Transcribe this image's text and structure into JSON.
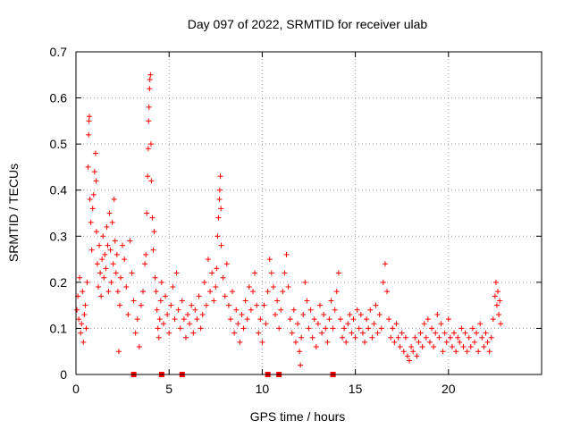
{
  "chart_data": {
    "type": "scatter",
    "title": "Day 097 of 2022, SRMTID for receiver ulab",
    "xlabel": "GPS time / hours",
    "ylabel": "SRMTID / TECUs",
    "xlim": [
      0,
      25
    ],
    "ylim": [
      0,
      0.7
    ],
    "x_ticks": [
      0,
      5,
      10,
      15,
      20
    ],
    "x_tick_labels": [
      "0",
      "5",
      "10",
      "15",
      "20"
    ],
    "y_ticks": [
      0,
      0.1,
      0.2,
      0.3,
      0.4,
      0.5,
      0.6,
      0.7
    ],
    "y_tick_labels": [
      "0",
      "0.1",
      "0.2",
      "0.3",
      "0.4",
      "0.5",
      "0.6",
      "0.7"
    ],
    "grid": true,
    "marker": "plus",
    "color": "#ff0000",
    "series": [
      {
        "name": "SRMTID",
        "points": [
          [
            0.05,
            0.14
          ],
          [
            0.1,
            0.17
          ],
          [
            0.15,
            0.12
          ],
          [
            0.2,
            0.21
          ],
          [
            0.25,
            0.09
          ],
          [
            0.3,
            0.11
          ],
          [
            0.35,
            0.18
          ],
          [
            0.4,
            0.07
          ],
          [
            0.45,
            0.13
          ],
          [
            0.5,
            0.15
          ],
          [
            0.55,
            0.1
          ],
          [
            0.6,
            0.2
          ],
          [
            0.65,
            0.45
          ],
          [
            0.68,
            0.52
          ],
          [
            0.7,
            0.55
          ],
          [
            0.72,
            0.56
          ],
          [
            0.75,
            0.38
          ],
          [
            0.8,
            0.33
          ],
          [
            0.85,
            0.27
          ],
          [
            0.9,
            0.36
          ],
          [
            0.95,
            0.39
          ],
          [
            1.0,
            0.44
          ],
          [
            1.05,
            0.48
          ],
          [
            1.08,
            0.42
          ],
          [
            1.1,
            0.31
          ],
          [
            1.15,
            0.24
          ],
          [
            1.2,
            0.19
          ],
          [
            1.25,
            0.28
          ],
          [
            1.3,
            0.22
          ],
          [
            1.35,
            0.17
          ],
          [
            1.4,
            0.25
          ],
          [
            1.45,
            0.3
          ],
          [
            1.5,
            0.21
          ],
          [
            1.55,
            0.26
          ],
          [
            1.6,
            0.23
          ],
          [
            1.65,
            0.32
          ],
          [
            1.7,
            0.28
          ],
          [
            1.75,
            0.18
          ],
          [
            1.8,
            0.35
          ],
          [
            1.85,
            0.27
          ],
          [
            1.9,
            0.2
          ],
          [
            1.95,
            0.33
          ],
          [
            2.0,
            0.24
          ],
          [
            2.05,
            0.38
          ],
          [
            2.1,
            0.29
          ],
          [
            2.15,
            0.22
          ],
          [
            2.2,
            0.26
          ],
          [
            2.25,
            0.18
          ],
          [
            2.3,
            0.05
          ],
          [
            2.35,
            0.15
          ],
          [
            2.4,
            0.21
          ],
          [
            2.5,
            0.28
          ],
          [
            2.6,
            0.25
          ],
          [
            2.7,
            0.19
          ],
          [
            2.8,
            0.13
          ],
          [
            2.9,
            0.29
          ],
          [
            3.0,
            0.22
          ],
          [
            3.1,
            0.16
          ],
          [
            3.2,
            0.09
          ],
          [
            3.3,
            0.12
          ],
          [
            3.4,
            0.06
          ],
          [
            3.5,
            0.15
          ],
          [
            3.6,
            0.18
          ],
          [
            3.7,
            0.24
          ],
          [
            3.75,
            0.26
          ],
          [
            3.8,
            0.35
          ],
          [
            3.85,
            0.43
          ],
          [
            3.88,
            0.49
          ],
          [
            3.9,
            0.55
          ],
          [
            3.92,
            0.58
          ],
          [
            3.95,
            0.62
          ],
          [
            3.97,
            0.64
          ],
          [
            4.0,
            0.65
          ],
          [
            4.03,
            0.5
          ],
          [
            4.05,
            0.42
          ],
          [
            4.1,
            0.34
          ],
          [
            4.15,
            0.27
          ],
          [
            4.2,
            0.31
          ],
          [
            4.25,
            0.21
          ],
          [
            4.3,
            0.18
          ],
          [
            4.35,
            0.14
          ],
          [
            4.4,
            0.1
          ],
          [
            4.45,
            0.08
          ],
          [
            4.5,
            0.12
          ],
          [
            4.55,
            0.16
          ],
          [
            4.6,
            0.2
          ],
          [
            4.7,
            0.11
          ],
          [
            4.8,
            0.17
          ],
          [
            4.9,
            0.13
          ],
          [
            5.0,
            0.09
          ],
          [
            5.1,
            0.15
          ],
          [
            5.2,
            0.19
          ],
          [
            5.3,
            0.12
          ],
          [
            5.4,
            0.22
          ],
          [
            5.5,
            0.14
          ],
          [
            5.6,
            0.1
          ],
          [
            5.7,
            0.16
          ],
          [
            5.8,
            0.12
          ],
          [
            5.9,
            0.08
          ],
          [
            6.0,
            0.13
          ],
          [
            6.1,
            0.11
          ],
          [
            6.2,
            0.15
          ],
          [
            6.3,
            0.09
          ],
          [
            6.4,
            0.14
          ],
          [
            6.5,
            0.12
          ],
          [
            6.6,
            0.17
          ],
          [
            6.7,
            0.1
          ],
          [
            6.8,
            0.13
          ],
          [
            6.9,
            0.2
          ],
          [
            7.0,
            0.15
          ],
          [
            7.1,
            0.25
          ],
          [
            7.2,
            0.18
          ],
          [
            7.3,
            0.22
          ],
          [
            7.4,
            0.16
          ],
          [
            7.5,
            0.19
          ],
          [
            7.55,
            0.23
          ],
          [
            7.6,
            0.3
          ],
          [
            7.65,
            0.34
          ],
          [
            7.7,
            0.38
          ],
          [
            7.72,
            0.4
          ],
          [
            7.75,
            0.43
          ],
          [
            7.78,
            0.36
          ],
          [
            7.8,
            0.28
          ],
          [
            7.9,
            0.21
          ],
          [
            8.0,
            0.17
          ],
          [
            8.1,
            0.24
          ],
          [
            8.2,
            0.15
          ],
          [
            8.3,
            0.12
          ],
          [
            8.4,
            0.18
          ],
          [
            8.5,
            0.09
          ],
          [
            8.6,
            0.14
          ],
          [
            8.7,
            0.11
          ],
          [
            8.8,
            0.07
          ],
          [
            8.9,
            0.13
          ],
          [
            9.0,
            0.1
          ],
          [
            9.1,
            0.16
          ],
          [
            9.2,
            0.12
          ],
          [
            9.3,
            0.19
          ],
          [
            9.4,
            0.14
          ],
          [
            9.5,
            0.18
          ],
          [
            9.6,
            0.22
          ],
          [
            9.7,
            0.15
          ],
          [
            9.8,
            0.09
          ],
          [
            9.9,
            0.12
          ],
          [
            10.0,
            0.07
          ],
          [
            10.1,
            0.15
          ],
          [
            10.2,
            0.11
          ],
          [
            10.3,
            0.18
          ],
          [
            10.4,
            0.25
          ],
          [
            10.5,
            0.22
          ],
          [
            10.6,
            0.19
          ],
          [
            10.7,
            0.13
          ],
          [
            10.8,
            0.16
          ],
          [
            10.9,
            0.1
          ],
          [
            11.0,
            0.14
          ],
          [
            11.1,
            0.18
          ],
          [
            11.2,
            0.22
          ],
          [
            11.3,
            0.26
          ],
          [
            11.4,
            0.19
          ],
          [
            11.5,
            0.12
          ],
          [
            11.6,
            0.09
          ],
          [
            11.7,
            0.14
          ],
          [
            11.8,
            0.07
          ],
          [
            11.9,
            0.11
          ],
          [
            12.0,
            0.05
          ],
          [
            12.05,
            0.02
          ],
          [
            12.1,
            0.08
          ],
          [
            12.2,
            0.13
          ],
          [
            12.3,
            0.2
          ],
          [
            12.4,
            0.16
          ],
          [
            12.5,
            0.1
          ],
          [
            12.6,
            0.14
          ],
          [
            12.7,
            0.08
          ],
          [
            12.8,
            0.12
          ],
          [
            12.9,
            0.06
          ],
          [
            13.0,
            0.11
          ],
          [
            13.1,
            0.15
          ],
          [
            13.2,
            0.09
          ],
          [
            13.3,
            0.13
          ],
          [
            13.4,
            0.1
          ],
          [
            13.5,
            0.07
          ],
          [
            13.6,
            0.12
          ],
          [
            13.7,
            0.16
          ],
          [
            13.8,
            0.1
          ],
          [
            13.9,
            0.14
          ],
          [
            14.0,
            0.18
          ],
          [
            14.1,
            0.22
          ],
          [
            14.2,
            0.12
          ],
          [
            14.3,
            0.08
          ],
          [
            14.4,
            0.1
          ],
          [
            14.5,
            0.07
          ],
          [
            14.6,
            0.11
          ],
          [
            14.7,
            0.13
          ],
          [
            14.8,
            0.09
          ],
          [
            14.9,
            0.12
          ],
          [
            15.0,
            0.08
          ],
          [
            15.1,
            0.14
          ],
          [
            15.2,
            0.1
          ],
          [
            15.3,
            0.13
          ],
          [
            15.4,
            0.09
          ],
          [
            15.5,
            0.07
          ],
          [
            15.6,
            0.12
          ],
          [
            15.7,
            0.1
          ],
          [
            15.8,
            0.14
          ],
          [
            15.9,
            0.08
          ],
          [
            16.0,
            0.11
          ],
          [
            16.1,
            0.15
          ],
          [
            16.2,
            0.09
          ],
          [
            16.3,
            0.13
          ],
          [
            16.4,
            0.1
          ],
          [
            16.5,
            0.2
          ],
          [
            16.6,
            0.24
          ],
          [
            16.7,
            0.18
          ],
          [
            16.8,
            0.12
          ],
          [
            16.9,
            0.08
          ],
          [
            17.0,
            0.1
          ],
          [
            17.1,
            0.07
          ],
          [
            17.2,
            0.11
          ],
          [
            17.3,
            0.08
          ],
          [
            17.4,
            0.06
          ],
          [
            17.5,
            0.09
          ],
          [
            17.6,
            0.05
          ],
          [
            17.7,
            0.08
          ],
          [
            17.8,
            0.04
          ],
          [
            17.9,
            0.03
          ],
          [
            18.0,
            0.06
          ],
          [
            18.1,
            0.05
          ],
          [
            18.2,
            0.08
          ],
          [
            18.3,
            0.04
          ],
          [
            18.4,
            0.07
          ],
          [
            18.5,
            0.09
          ],
          [
            18.6,
            0.06
          ],
          [
            18.7,
            0.11
          ],
          [
            18.8,
            0.08
          ],
          [
            18.9,
            0.12
          ],
          [
            19.0,
            0.07
          ],
          [
            19.1,
            0.1
          ],
          [
            19.2,
            0.06
          ],
          [
            19.3,
            0.09
          ],
          [
            19.4,
            0.13
          ],
          [
            19.5,
            0.08
          ],
          [
            19.6,
            0.11
          ],
          [
            19.7,
            0.05
          ],
          [
            19.8,
            0.09
          ],
          [
            19.9,
            0.07
          ],
          [
            20.0,
            0.12
          ],
          [
            20.1,
            0.08
          ],
          [
            20.2,
            0.06
          ],
          [
            20.3,
            0.09
          ],
          [
            20.4,
            0.05
          ],
          [
            20.5,
            0.08
          ],
          [
            20.6,
            0.07
          ],
          [
            20.7,
            0.1
          ],
          [
            20.8,
            0.06
          ],
          [
            20.9,
            0.09
          ],
          [
            21.0,
            0.05
          ],
          [
            21.1,
            0.08
          ],
          [
            21.2,
            0.06
          ],
          [
            21.3,
            0.1
          ],
          [
            21.4,
            0.07
          ],
          [
            21.5,
            0.09
          ],
          [
            21.6,
            0.05
          ],
          [
            21.7,
            0.11
          ],
          [
            21.8,
            0.08
          ],
          [
            21.9,
            0.06
          ],
          [
            22.0,
            0.09
          ],
          [
            22.1,
            0.07
          ],
          [
            22.2,
            0.05
          ],
          [
            22.3,
            0.08
          ],
          [
            22.4,
            0.12
          ],
          [
            22.5,
            0.17
          ],
          [
            22.55,
            0.2
          ],
          [
            22.6,
            0.15
          ],
          [
            22.65,
            0.18
          ],
          [
            22.7,
            0.13
          ],
          [
            22.75,
            0.16
          ],
          [
            22.8,
            0.11
          ]
        ],
        "zero_markers_x": [
          3.1,
          4.6,
          5.7,
          10.3,
          10.9,
          13.8
        ]
      }
    ]
  }
}
